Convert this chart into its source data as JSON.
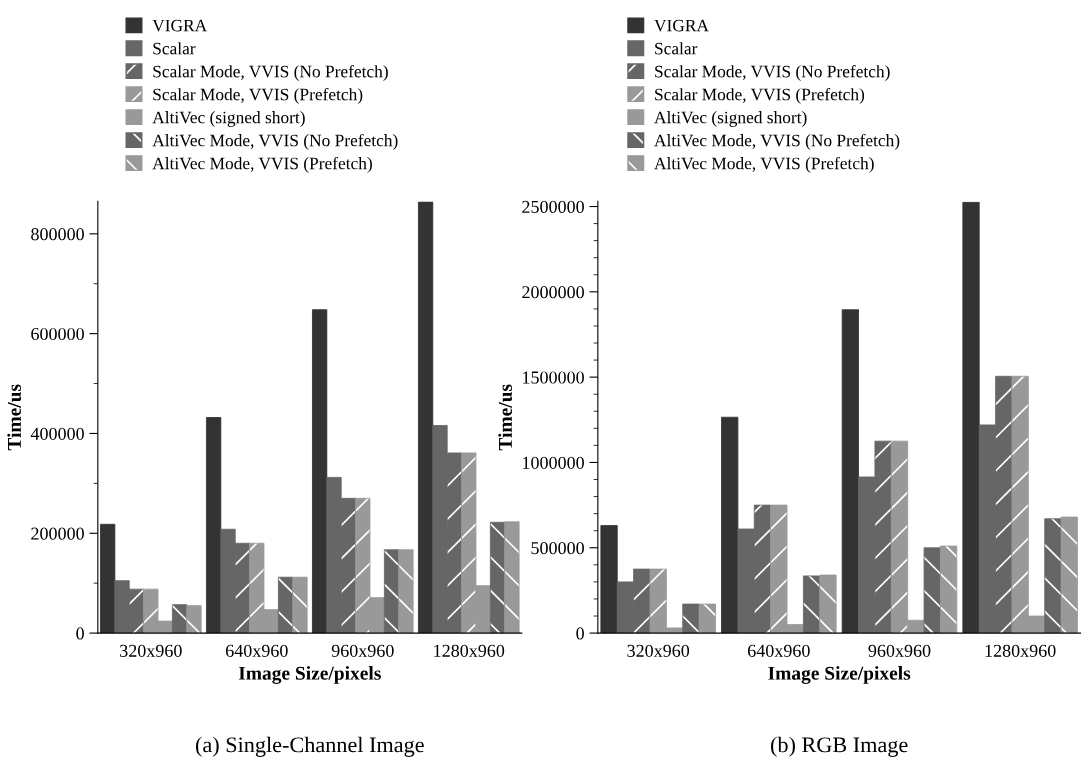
{
  "chart_data": [
    {
      "type": "bar",
      "categories": [
        "320x960",
        "640x960",
        "960x960",
        "1280x960"
      ],
      "xlabel": "Image Size/pixels",
      "ylabel": "Time/us",
      "ylim": [
        0,
        865000
      ],
      "yticks": [
        0,
        200000,
        400000,
        600000,
        800000
      ],
      "legend": "top",
      "grid": false,
      "annotations": [
        "(a) Single-Channel Image"
      ],
      "series": [
        {
          "name": "VIGRA",
          "color": "#333333",
          "values": [
            218000,
            432000,
            648000,
            864000
          ]
        },
        {
          "name": "Scalar",
          "color": "#666666",
          "values": [
            105000,
            208000,
            312000,
            416000
          ]
        },
        {
          "name": "Scalar Mode, VVIS (No Prefetch)",
          "color": "#666666",
          "values": [
            88000,
            180000,
            270000,
            361000
          ]
        },
        {
          "name": "Scalar Mode, VVIS (Prefetch)",
          "color": "#999999",
          "values": [
            88000,
            180000,
            270000,
            361000
          ]
        },
        {
          "name": "AltiVec (signed short)",
          "color": "#999999",
          "values": [
            24000,
            47000,
            71000,
            95000
          ]
        },
        {
          "name": "AltiVec Mode, VVIS (No Prefetch)",
          "color": "#666666",
          "values": [
            57000,
            112000,
            167000,
            222000
          ]
        },
        {
          "name": "AltiVec Mode, VVIS (Prefetch)",
          "color": "#999999",
          "values": [
            55000,
            112000,
            167000,
            223000
          ]
        }
      ]
    },
    {
      "type": "bar",
      "categories": [
        "320x960",
        "640x960",
        "960x960",
        "1280x960"
      ],
      "xlabel": "Image Size/pixels",
      "ylabel": "Time/us",
      "ylim": [
        0,
        2530000
      ],
      "yticks": [
        0,
        500000,
        1000000,
        1500000,
        2000000,
        2500000
      ],
      "legend": "top",
      "grid": false,
      "annotations": [
        "(b) RGB Image"
      ],
      "series": [
        {
          "name": "VIGRA",
          "color": "#333333",
          "values": [
            630000,
            1265000,
            1895000,
            2525000
          ]
        },
        {
          "name": "Scalar",
          "color": "#666666",
          "values": [
            300000,
            610000,
            915000,
            1220000
          ]
        },
        {
          "name": "Scalar Mode, VVIS (No Prefetch)",
          "color": "#666666",
          "values": [
            375000,
            750000,
            1125000,
            1505000
          ]
        },
        {
          "name": "Scalar Mode, VVIS (Prefetch)",
          "color": "#999999",
          "values": [
            375000,
            750000,
            1125000,
            1505000
          ]
        },
        {
          "name": "AltiVec (signed short)",
          "color": "#999999",
          "values": [
            30000,
            50000,
            75000,
            100000
          ]
        },
        {
          "name": "AltiVec Mode, VVIS (No Prefetch)",
          "color": "#666666",
          "values": [
            170000,
            335000,
            500000,
            670000
          ]
        },
        {
          "name": "AltiVec Mode, VVIS (Prefetch)",
          "color": "#999999",
          "values": [
            170000,
            340000,
            510000,
            680000
          ]
        }
      ]
    }
  ]
}
